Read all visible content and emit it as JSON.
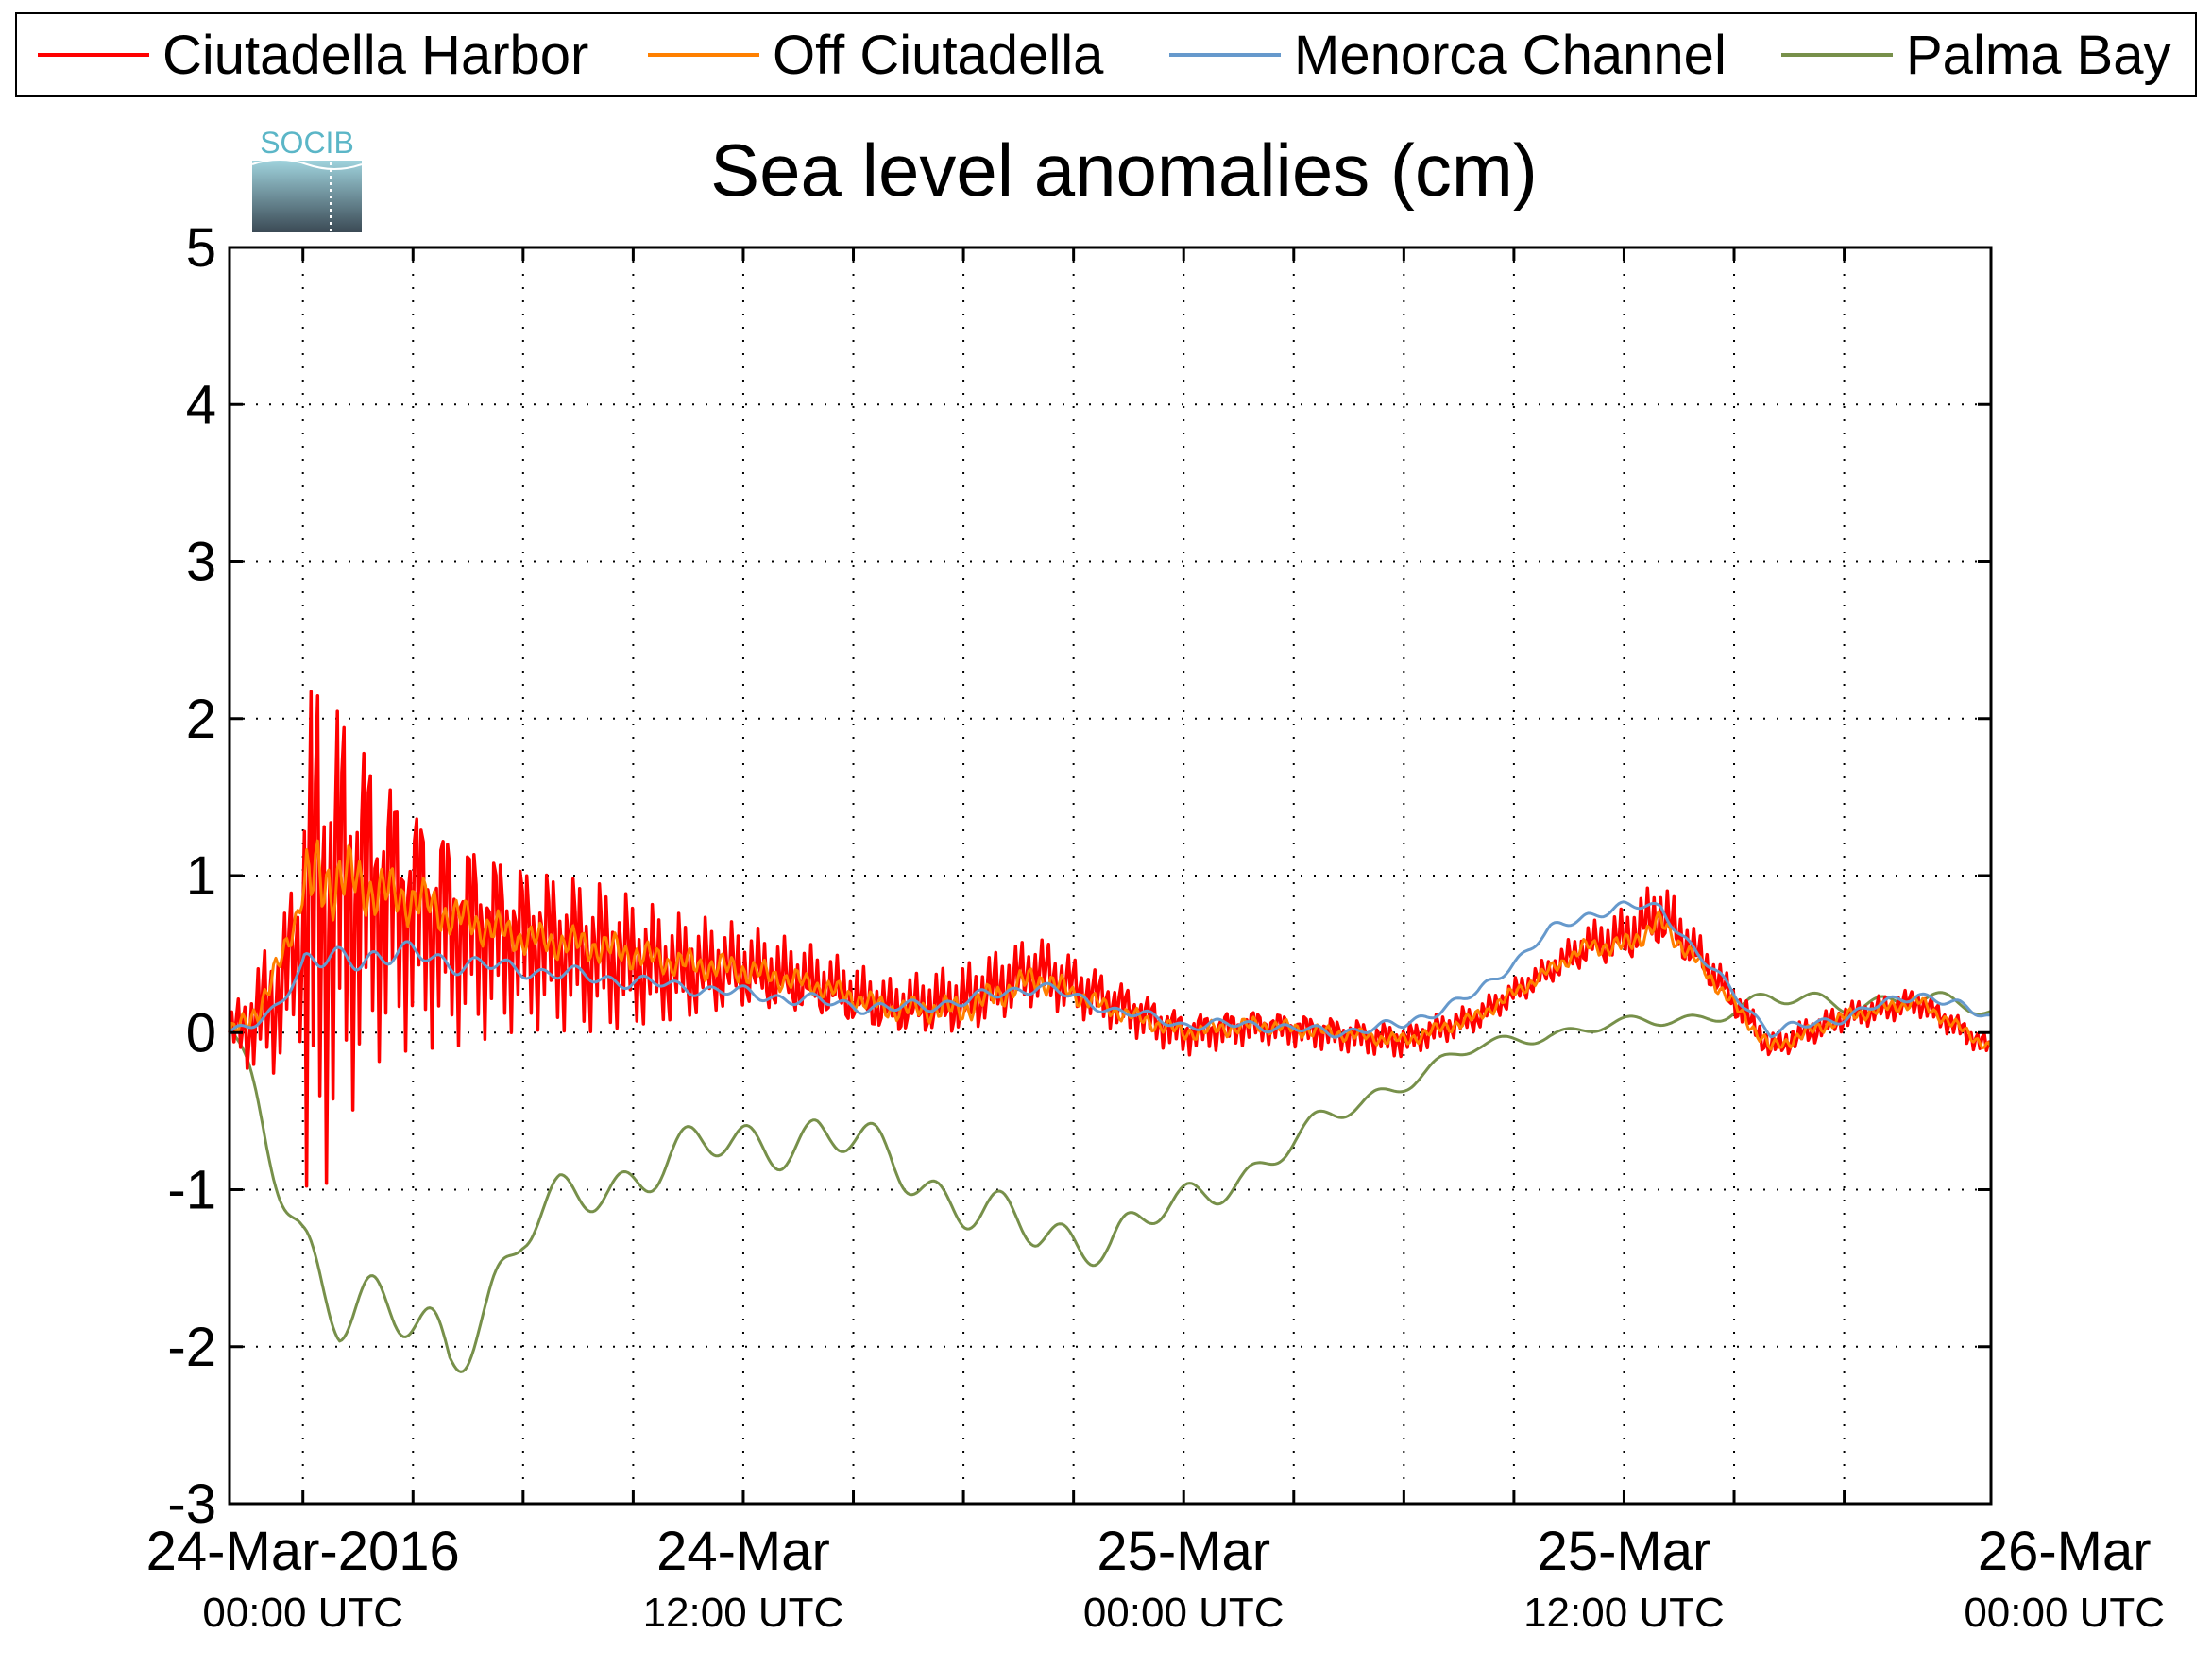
{
  "chart_data": {
    "type": "line",
    "title": "Sea level anomalies (cm)",
    "logo_text": "SOCIB",
    "ylim": [
      -3,
      5
    ],
    "yticks": [
      5,
      4,
      3,
      2,
      1,
      0,
      -1,
      -2,
      -3
    ],
    "ytick_labels": [
      "5",
      "4",
      "3",
      "2",
      "1",
      "0",
      "-1",
      "-2",
      "-3"
    ],
    "xlim_hours": [
      -2,
      46
    ],
    "xticks": [
      {
        "hour": 0,
        "line1": "24-Mar-2016",
        "line2": "00:00 UTC"
      },
      {
        "hour": 12,
        "line1": "24-Mar",
        "line2": "12:00 UTC"
      },
      {
        "hour": 24,
        "line1": "25-Mar",
        "line2": "00:00 UTC"
      },
      {
        "hour": 36,
        "line1": "25-Mar",
        "line2": "12:00 UTC"
      },
      {
        "hour": 48,
        "line1": "26-Mar",
        "line2": "00:00 UTC"
      }
    ],
    "grid": true,
    "legend_position": "top",
    "series": [
      {
        "name": "Ciutadella Harbor",
        "color": "#ff0000",
        "x": [
          -2,
          -1,
          0,
          1,
          2,
          3,
          4,
          6,
          8,
          10,
          12,
          14,
          16,
          18,
          20,
          22,
          24,
          26,
          28,
          30,
          32,
          34,
          35,
          36,
          37,
          38,
          40,
          42,
          44,
          46
        ],
        "y": [
          0.1,
          0.3,
          0.6,
          0.9,
          0.9,
          0.8,
          0.7,
          0.6,
          0.5,
          0.4,
          0.4,
          0.3,
          0.15,
          0.2,
          0.4,
          0.2,
          0.0,
          0.05,
          0.0,
          -0.05,
          0.1,
          0.4,
          0.55,
          0.6,
          0.75,
          0.5,
          -0.1,
          0.1,
          0.2,
          -0.1
        ],
        "noise_amplitude": [
          0.5,
          1.6,
          2.2,
          1.6,
          1.1,
          0.9,
          0.8,
          0.6,
          0.55,
          0.4,
          0.3,
          0.25,
          0.2,
          0.25,
          0.25,
          0.18,
          0.15,
          0.12,
          0.12,
          0.12,
          0.1,
          0.1,
          0.15,
          0.2,
          0.25,
          0.15,
          0.1,
          0.1,
          0.1,
          0.08
        ]
      },
      {
        "name": "Off Ciutadella",
        "color": "#ff8000",
        "x": [
          -2,
          -1,
          0,
          1,
          2,
          3,
          4,
          6,
          8,
          10,
          12,
          14,
          16,
          18,
          20,
          22,
          24,
          26,
          28,
          30,
          32,
          34,
          35,
          36,
          37,
          38,
          40,
          42,
          44,
          46
        ],
        "y": [
          0.1,
          0.5,
          0.9,
          1.0,
          0.9,
          0.85,
          0.75,
          0.6,
          0.55,
          0.45,
          0.4,
          0.3,
          0.15,
          0.15,
          0.35,
          0.15,
          0.0,
          0.05,
          0.0,
          -0.05,
          0.1,
          0.4,
          0.55,
          0.55,
          0.7,
          0.45,
          -0.1,
          0.1,
          0.2,
          -0.1
        ],
        "noise_amplitude": [
          0.25,
          0.35,
          0.35,
          0.25,
          0.2,
          0.18,
          0.15,
          0.12,
          0.12,
          0.1,
          0.1,
          0.08,
          0.08,
          0.1,
          0.1,
          0.06,
          0.06,
          0.06,
          0.05,
          0.05,
          0.05,
          0.05,
          0.06,
          0.08,
          0.08,
          0.06,
          0.05,
          0.05,
          0.05,
          0.04
        ]
      },
      {
        "name": "Menorca Channel",
        "color": "#6699cc",
        "x": [
          -2,
          -1,
          0,
          1,
          2,
          3,
          4,
          6,
          8,
          10,
          12,
          14,
          16,
          18,
          20,
          22,
          24,
          26,
          28,
          30,
          32,
          34,
          35,
          36,
          37,
          38,
          40,
          42,
          44,
          46
        ],
        "y": [
          0.0,
          0.2,
          0.45,
          0.45,
          0.5,
          0.5,
          0.45,
          0.4,
          0.35,
          0.3,
          0.25,
          0.2,
          0.15,
          0.2,
          0.3,
          0.15,
          0.05,
          0.05,
          0.0,
          0.05,
          0.25,
          0.65,
          0.75,
          0.8,
          0.8,
          0.5,
          0.0,
          0.1,
          0.25,
          0.1
        ],
        "noise_amplitude": [
          0.15,
          0.15,
          0.12,
          0.1,
          0.1,
          0.08,
          0.08,
          0.06,
          0.06,
          0.05,
          0.05,
          0.05,
          0.05,
          0.05,
          0.05,
          0.04,
          0.04,
          0.04,
          0.04,
          0.04,
          0.04,
          0.04,
          0.04,
          0.04,
          0.04,
          0.04,
          0.04,
          0.04,
          0.04,
          0.04
        ]
      },
      {
        "name": "Palma Bay",
        "color": "#77904a",
        "x": [
          -2,
          -1,
          0,
          1,
          2,
          3,
          4,
          5,
          6,
          7,
          8,
          10,
          12,
          14,
          16,
          18,
          20,
          22,
          24,
          26,
          28,
          30,
          32,
          34,
          36,
          38,
          40,
          42,
          44,
          46
        ],
        "y": [
          0.0,
          -0.7,
          -1.3,
          -1.7,
          -1.8,
          -1.9,
          -2.0,
          -1.7,
          -1.3,
          -1.1,
          -1.0,
          -0.8,
          -0.7,
          -0.65,
          -0.8,
          -1.1,
          -1.3,
          -1.3,
          -1.1,
          -0.85,
          -0.55,
          -0.3,
          -0.1,
          0.0,
          0.05,
          0.1,
          0.2,
          0.2,
          0.2,
          0.15
        ],
        "noise_amplitude": [
          0.1,
          0.25,
          0.3,
          0.3,
          0.3,
          0.3,
          0.3,
          0.25,
          0.2,
          0.2,
          0.2,
          0.2,
          0.2,
          0.2,
          0.2,
          0.2,
          0.2,
          0.18,
          0.15,
          0.12,
          0.1,
          0.08,
          0.06,
          0.05,
          0.05,
          0.06,
          0.08,
          0.08,
          0.08,
          0.06
        ]
      }
    ]
  }
}
